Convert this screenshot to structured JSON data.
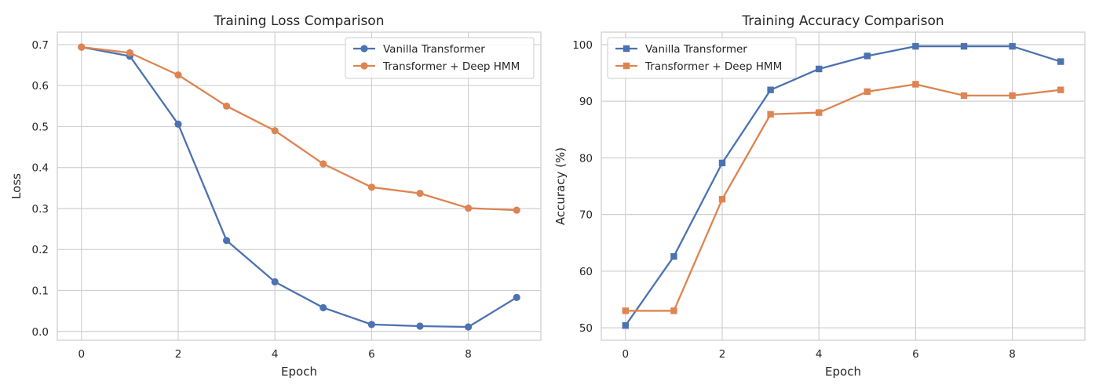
{
  "colors": {
    "series_1": "#4c72b0",
    "series_2": "#dd8452"
  },
  "chart_data": [
    {
      "type": "line",
      "title": "Training Loss Comparison",
      "xlabel": "Epoch",
      "ylabel": "Loss",
      "x": [
        0,
        1,
        2,
        3,
        4,
        5,
        6,
        7,
        8,
        9
      ],
      "xlim": [
        -0.5,
        9.5
      ],
      "ylim": [
        -0.0215,
        0.7305
      ],
      "xticks": [
        0,
        2,
        4,
        6,
        8
      ],
      "xtick_labels": [
        "0",
        "2",
        "4",
        "6",
        "8"
      ],
      "yticks": [
        0.0,
        0.1,
        0.2,
        0.3,
        0.4,
        0.5,
        0.6,
        0.7
      ],
      "ytick_labels": [
        "0.0",
        "0.1",
        "0.2",
        "0.3",
        "0.4",
        "0.5",
        "0.6",
        "0.7"
      ],
      "grid": true,
      "legend_position": "upper right",
      "marker": "circle",
      "series": [
        {
          "name": "Vanilla Transformer",
          "color": "#4c72b0",
          "values": [
            0.694,
            0.672,
            0.506,
            0.222,
            0.121,
            0.058,
            0.017,
            0.013,
            0.011,
            0.083
          ]
        },
        {
          "name": "Transformer + Deep HMM",
          "color": "#dd8452",
          "values": [
            0.694,
            0.68,
            0.626,
            0.55,
            0.49,
            0.409,
            0.352,
            0.337,
            0.301,
            0.296
          ]
        }
      ]
    },
    {
      "type": "line",
      "title": "Training Accuracy Comparison",
      "xlabel": "Epoch",
      "ylabel": "Accuracy (%)",
      "x": [
        0,
        1,
        2,
        3,
        4,
        5,
        6,
        7,
        8,
        9
      ],
      "xlim": [
        -0.5,
        9.5
      ],
      "ylim": [
        47.8,
        102.2
      ],
      "xticks": [
        0,
        2,
        4,
        6,
        8
      ],
      "xtick_labels": [
        "0",
        "2",
        "4",
        "6",
        "8"
      ],
      "yticks": [
        50,
        60,
        70,
        80,
        90,
        100
      ],
      "ytick_labels": [
        "50",
        "60",
        "70",
        "80",
        "90",
        "100"
      ],
      "grid": true,
      "legend_position": "upper left",
      "marker": "square",
      "series": [
        {
          "name": "Vanilla Transformer",
          "color": "#4c72b0",
          "values": [
            50.4,
            62.6,
            79.1,
            92.0,
            95.7,
            98.0,
            99.7,
            99.7,
            99.7,
            97.0
          ]
        },
        {
          "name": "Transformer + Deep HMM",
          "color": "#dd8452",
          "values": [
            53.0,
            53.0,
            72.7,
            87.7,
            88.0,
            91.7,
            93.0,
            91.0,
            91.0,
            92.0
          ]
        }
      ]
    }
  ]
}
